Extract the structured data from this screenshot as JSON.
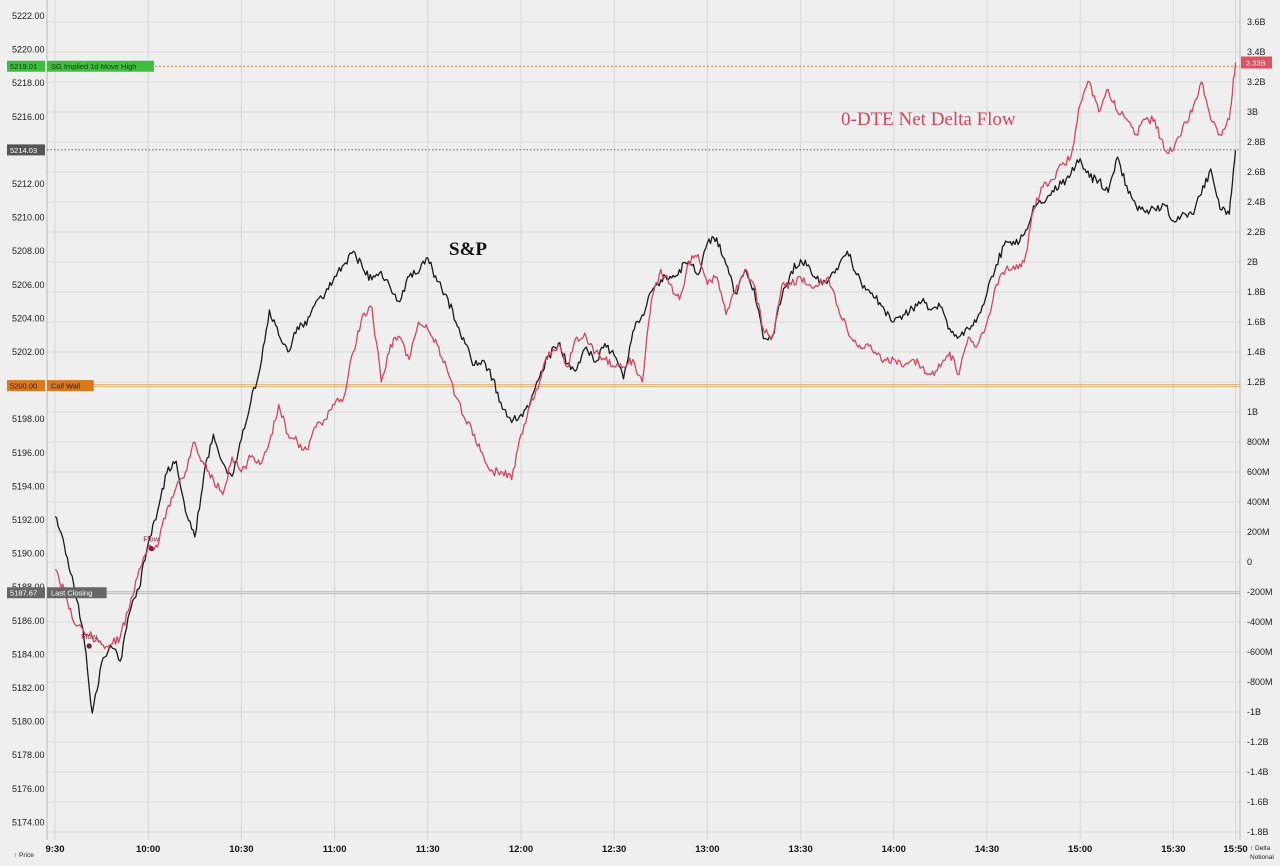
{
  "chart_data": {
    "type": "line",
    "x_ticks": [
      "9:30",
      "10:00",
      "10:30",
      "11:00",
      "11:30",
      "12:00",
      "12:30",
      "13:00",
      "13:30",
      "14:00",
      "14:30",
      "15:00",
      "15:30",
      "15:50"
    ],
    "left_axis": {
      "name": "↑ Price",
      "ylim": [
        5173,
        5222.5
      ],
      "ticks": [
        "5222.00",
        "5220.00",
        "5218.00",
        "5216.00",
        "5214.00",
        "5212.00",
        "5210.00",
        "5208.00",
        "5206.00",
        "5204.00",
        "5202.00",
        "5200.00",
        "5198.00",
        "5196.00",
        "5194.00",
        "5192.00",
        "5190.00",
        "5188.00",
        "5186.00",
        "5184.00",
        "5182.00",
        "5180.00",
        "5178.00",
        "5176.00",
        "5174.00"
      ]
    },
    "right_axis": {
      "name_line1": "↑ Delta",
      "name_line2": "Notional",
      "ticks": [
        "3.6B",
        "3.4B",
        "3.2B",
        "3B",
        "2.8B",
        "2.6B",
        "2.4B",
        "2.2B",
        "2B",
        "1.8B",
        "1.6B",
        "1.4B",
        "1.2B",
        "1B",
        "800M",
        "600M",
        "400M",
        "200M",
        "0",
        "-200M",
        "-400M",
        "-600M",
        "-800M",
        "-1B",
        "-1.2B",
        "-1.4B",
        "-1.6B",
        "-1.8B"
      ]
    },
    "series": [
      {
        "name": "S&P",
        "color": "#1a1a1a",
        "x": [
          "9:30",
          "9:33",
          "9:36",
          "9:39",
          "9:42",
          "9:45",
          "9:48",
          "9:51",
          "9:54",
          "9:57",
          "10:00",
          "10:03",
          "10:06",
          "10:09",
          "10:12",
          "10:15",
          "10:18",
          "10:21",
          "10:24",
          "10:27",
          "10:30",
          "10:33",
          "10:36",
          "10:39",
          "10:42",
          "10:45",
          "10:48",
          "10:51",
          "10:54",
          "10:57",
          "11:00",
          "11:03",
          "11:06",
          "11:09",
          "11:12",
          "11:15",
          "11:18",
          "11:21",
          "11:24",
          "11:27",
          "11:30",
          "11:33",
          "11:36",
          "11:39",
          "11:42",
          "11:45",
          "11:48",
          "11:51",
          "11:54",
          "11:57",
          "12:00",
          "12:03",
          "12:06",
          "12:09",
          "12:12",
          "12:15",
          "12:18",
          "12:21",
          "12:24",
          "12:27",
          "12:30",
          "12:33",
          "12:36",
          "12:39",
          "12:42",
          "12:45",
          "12:48",
          "12:51",
          "12:54",
          "12:57",
          "13:00",
          "13:03",
          "13:06",
          "13:09",
          "13:12",
          "13:15",
          "13:18",
          "13:21",
          "13:24",
          "13:27",
          "13:30",
          "13:33",
          "13:36",
          "13:39",
          "13:42",
          "13:45",
          "13:48",
          "13:51",
          "13:54",
          "13:57",
          "14:00",
          "14:03",
          "14:06",
          "14:09",
          "14:12",
          "14:15",
          "14:18",
          "14:21",
          "14:24",
          "14:27",
          "14:30",
          "14:33",
          "14:36",
          "14:39",
          "14:42",
          "14:45",
          "14:48",
          "14:51",
          "14:54",
          "14:57",
          "15:00",
          "15:03",
          "15:06",
          "15:09",
          "15:12",
          "15:15",
          "15:18",
          "15:21",
          "15:24",
          "15:27",
          "15:30",
          "15:33",
          "15:36",
          "15:39",
          "15:42",
          "15:45",
          "15:48",
          "15:50"
        ],
        "values": [
          5192.2,
          5190.5,
          5188.2,
          5185.5,
          5180.5,
          5183.5,
          5184.5,
          5183.6,
          5186.5,
          5187.9,
          5190.6,
          5192.5,
          5194.8,
          5195.5,
          5192.5,
          5191.0,
          5194.8,
          5197.1,
          5195.4,
          5194.6,
          5196.8,
          5199.0,
          5201.0,
          5204.5,
          5203.0,
          5202.0,
          5203.5,
          5203.6,
          5205.0,
          5205.5,
          5206.5,
          5207.2,
          5208.0,
          5207.0,
          5206.3,
          5206.8,
          5205.8,
          5205.0,
          5206.5,
          5206.7,
          5207.6,
          5206.2,
          5205.4,
          5203.8,
          5202.5,
          5201.2,
          5201.5,
          5200.4,
          5198.6,
          5197.8,
          5198.3,
          5199.0,
          5200.5,
          5201.8,
          5202.5,
          5201.3,
          5201.0,
          5202.3,
          5201.4,
          5202.5,
          5201.8,
          5200.4,
          5203.2,
          5204.2,
          5205.6,
          5206.3,
          5206.5,
          5206.9,
          5207.4,
          5206.6,
          5208.5,
          5208.8,
          5207.2,
          5205.5,
          5206.8,
          5205.8,
          5202.8,
          5203.0,
          5205.3,
          5206.8,
          5207.5,
          5207.0,
          5206.1,
          5206.3,
          5206.9,
          5208.0,
          5206.6,
          5205.7,
          5205.2,
          5204.5,
          5203.8,
          5204.2,
          5204.6,
          5205.0,
          5204.5,
          5204.7,
          5203.4,
          5202.9,
          5203.4,
          5204.1,
          5205.5,
          5207.2,
          5208.6,
          5208.4,
          5209.0,
          5210.7,
          5210.9,
          5211.6,
          5212.0,
          5212.6,
          5213.5,
          5212.4,
          5212.2,
          5211.5,
          5213.6,
          5211.9,
          5210.7,
          5210.3,
          5210.5,
          5210.8,
          5209.8,
          5210.3,
          5210.2,
          5211.4,
          5212.9,
          5210.5,
          5210.2,
          5214.0
        ]
      },
      {
        "name": "0-DTE Net Delta Flow",
        "color": "#d8455a",
        "x": [
          "9:30",
          "9:33",
          "9:36",
          "9:39",
          "9:42",
          "9:45",
          "9:48",
          "9:51",
          "9:54",
          "9:57",
          "10:00",
          "10:03",
          "10:06",
          "10:09",
          "10:12",
          "10:15",
          "10:18",
          "10:21",
          "10:24",
          "10:27",
          "10:30",
          "10:33",
          "10:36",
          "10:39",
          "10:42",
          "10:45",
          "10:48",
          "10:51",
          "10:54",
          "10:57",
          "11:00",
          "11:03",
          "11:06",
          "11:09",
          "11:12",
          "11:15",
          "11:18",
          "11:21",
          "11:24",
          "11:27",
          "11:30",
          "11:33",
          "11:36",
          "11:39",
          "11:42",
          "11:45",
          "11:48",
          "11:51",
          "11:54",
          "11:57",
          "12:00",
          "12:03",
          "12:06",
          "12:09",
          "12:12",
          "12:15",
          "12:18",
          "12:21",
          "12:24",
          "12:27",
          "12:30",
          "12:33",
          "12:36",
          "12:39",
          "12:42",
          "12:45",
          "12:48",
          "12:51",
          "12:54",
          "12:57",
          "13:00",
          "13:03",
          "13:06",
          "13:09",
          "13:12",
          "13:15",
          "13:18",
          "13:21",
          "13:24",
          "13:27",
          "13:30",
          "13:33",
          "13:36",
          "13:39",
          "13:42",
          "13:45",
          "13:48",
          "13:51",
          "13:54",
          "13:57",
          "14:00",
          "14:03",
          "14:06",
          "14:09",
          "14:12",
          "14:15",
          "14:18",
          "14:21",
          "14:24",
          "14:27",
          "14:30",
          "14:33",
          "14:36",
          "14:39",
          "14:42",
          "14:45",
          "14:48",
          "14:51",
          "14:54",
          "14:57",
          "15:00",
          "15:03",
          "15:06",
          "15:09",
          "15:12",
          "15:15",
          "15:18",
          "15:21",
          "15:24",
          "15:27",
          "15:30",
          "15:33",
          "15:36",
          "15:39",
          "15:42",
          "15:45",
          "15:48",
          "15:50"
        ],
        "values": [
          -0.05,
          -0.2,
          -0.4,
          -0.45,
          -0.5,
          -0.55,
          -0.55,
          -0.5,
          -0.3,
          -0.05,
          0.1,
          0.1,
          0.35,
          0.5,
          0.6,
          0.8,
          0.65,
          0.55,
          0.45,
          0.7,
          0.6,
          0.7,
          0.65,
          0.8,
          1.05,
          0.85,
          0.8,
          0.75,
          0.9,
          0.95,
          1.05,
          1.1,
          1.4,
          1.65,
          1.7,
          1.2,
          1.45,
          1.5,
          1.35,
          1.6,
          1.55,
          1.45,
          1.3,
          1.1,
          0.95,
          0.85,
          0.7,
          0.6,
          0.6,
          0.55,
          0.85,
          1.05,
          1.2,
          1.4,
          1.45,
          1.3,
          1.5,
          1.5,
          1.4,
          1.35,
          1.3,
          1.3,
          1.35,
          1.2,
          1.75,
          1.95,
          1.85,
          1.75,
          2.0,
          2.05,
          1.85,
          1.9,
          1.65,
          1.8,
          1.95,
          1.85,
          1.55,
          1.5,
          1.85,
          1.85,
          1.9,
          1.85,
          1.85,
          1.9,
          1.7,
          1.55,
          1.45,
          1.45,
          1.4,
          1.35,
          1.35,
          1.3,
          1.35,
          1.3,
          1.25,
          1.3,
          1.4,
          1.25,
          1.5,
          1.45,
          1.6,
          1.85,
          1.95,
          1.95,
          2.0,
          2.35,
          2.5,
          2.55,
          2.65,
          2.7,
          3.05,
          3.2,
          3.0,
          3.15,
          3.0,
          2.95,
          2.85,
          2.95,
          2.95,
          2.75,
          2.75,
          2.9,
          3.0,
          3.2,
          2.95,
          2.85,
          2.95,
          3.33
        ]
      }
    ],
    "levels": [
      {
        "label": "SG Implied 1d Move High",
        "value": "5219.01",
        "color": "#3dbf3d",
        "style": "dotted-orange"
      },
      {
        "label": "Call Wall",
        "value": "5200.00",
        "color": "#d97a1a",
        "style": "double-orange"
      },
      {
        "label": "Last Closing",
        "value": "5187.67",
        "color": "#666666",
        "style": "double-gray"
      }
    ],
    "current_price": "5214.03",
    "current_delta": "3.33B",
    "annotations": [
      "S&P",
      "0-DTE Net Delta Flow"
    ],
    "markers": [
      {
        "label": "Flow",
        "x": "9:41",
        "y": 5184.5
      },
      {
        "label": "Flow",
        "x": "10:01",
        "y": 5190.3
      }
    ],
    "grid": true
  }
}
